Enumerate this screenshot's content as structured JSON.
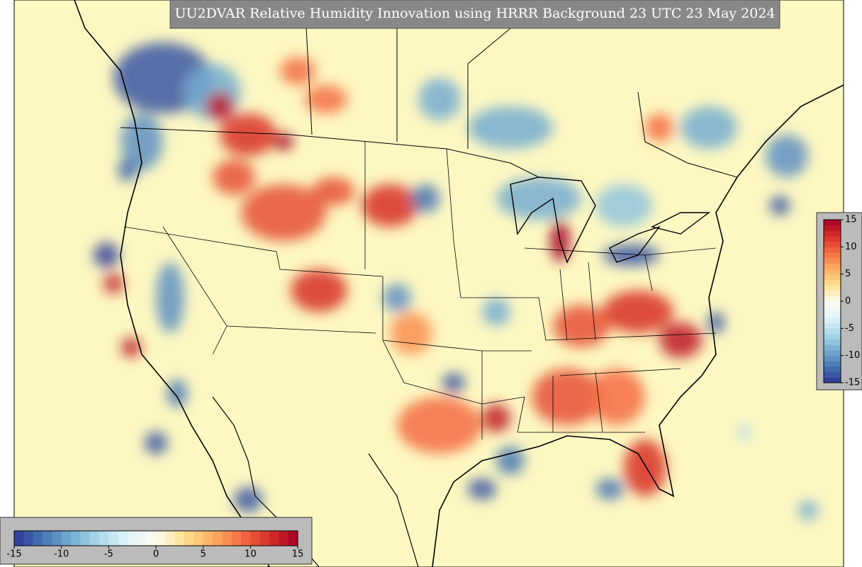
{
  "title": "UU2DVAR Relative Humidity Innovation using HRRR Background 23 UTC 23 May 2024",
  "colorbar_bottom": {
    "lim": [
      -15,
      15
    ],
    "ticks": [
      -15,
      -10,
      -5,
      0,
      5,
      10,
      15
    ]
  },
  "colorbar_right": {
    "lim": [
      -15,
      15
    ],
    "ticks": [
      15,
      10,
      5,
      0,
      -5,
      -10,
      -15
    ]
  }
}
